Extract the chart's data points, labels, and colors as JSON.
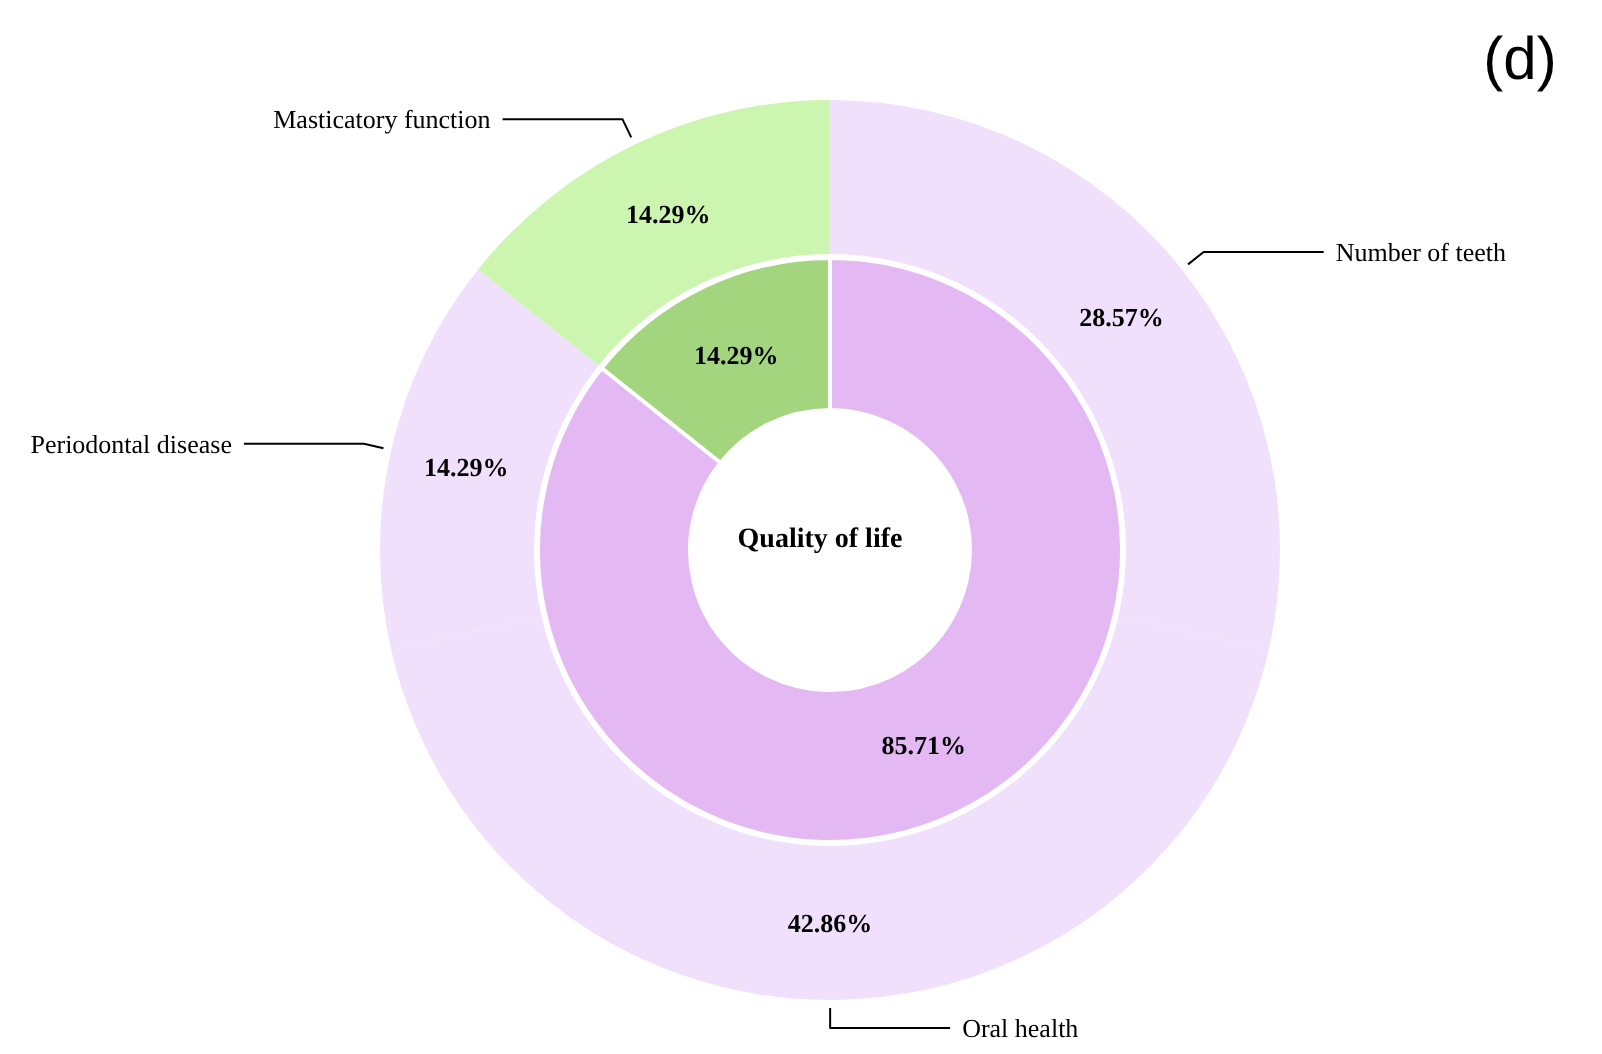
{
  "chart_data": [
    {
      "type": "donut",
      "title": "(d)",
      "legend": false,
      "categories": [
        "Number of teeth",
        "Oral health",
        "Periodontal disease",
        "Masticatory function"
      ],
      "values": [
        28.57,
        42.86,
        14.29,
        14.29
      ],
      "colors": [
        "#f1e0fb",
        "#f1e0fb",
        "#f1e0fb",
        "#ccf5b0"
      ],
      "value_labels": [
        "28.57%",
        "42.86%",
        "14.29%",
        "14.29%"
      ]
    },
    {
      "type": "donut",
      "legend": false,
      "annotations": [
        "Quality of life"
      ],
      "categories": [
        null,
        null
      ],
      "values": [
        85.71,
        14.29
      ],
      "colors": [
        "#e4b9f3",
        "#a3d47e"
      ],
      "value_labels": [
        "85.71%",
        "14.29%"
      ]
    }
  ]
}
